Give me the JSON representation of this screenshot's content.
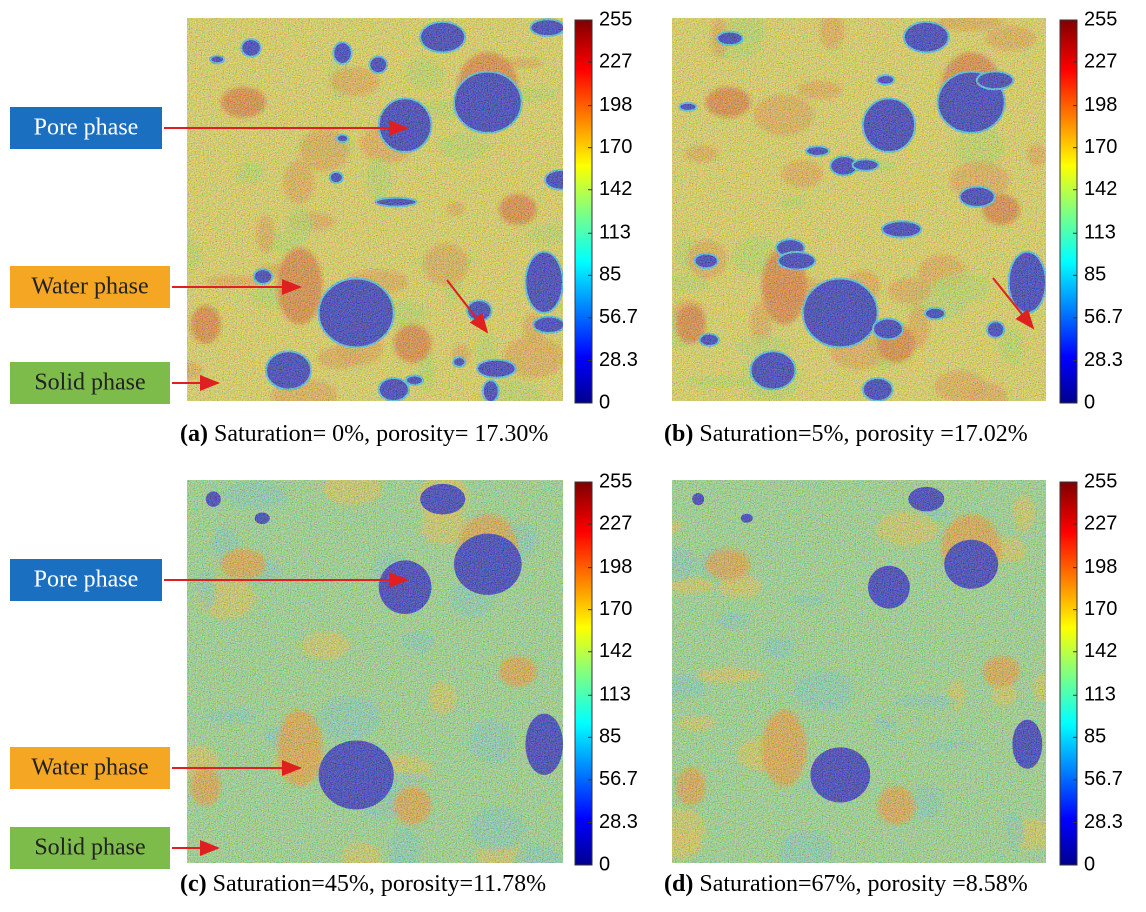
{
  "colorbar_ticks": [
    0,
    28.3,
    56.7,
    85,
    113,
    142,
    170,
    198,
    227,
    255
  ],
  "panels": [
    {
      "label": "(a)",
      "caption": "Saturation= 0%, porosity= 17.30%",
      "annotations": [
        "Pore phase",
        "Water phase",
        "Solid phase"
      ]
    },
    {
      "label": "(b)",
      "caption": "Saturation=5%, porosity =17.02%"
    },
    {
      "label": "(c)",
      "caption": "Saturation=45%, porosity=11.78%",
      "annotations": [
        "Pore phase",
        "Water phase",
        "Solid phase"
      ]
    },
    {
      "label": "(d)",
      "caption": "Saturation=67%, porosity =8.58%"
    }
  ]
}
